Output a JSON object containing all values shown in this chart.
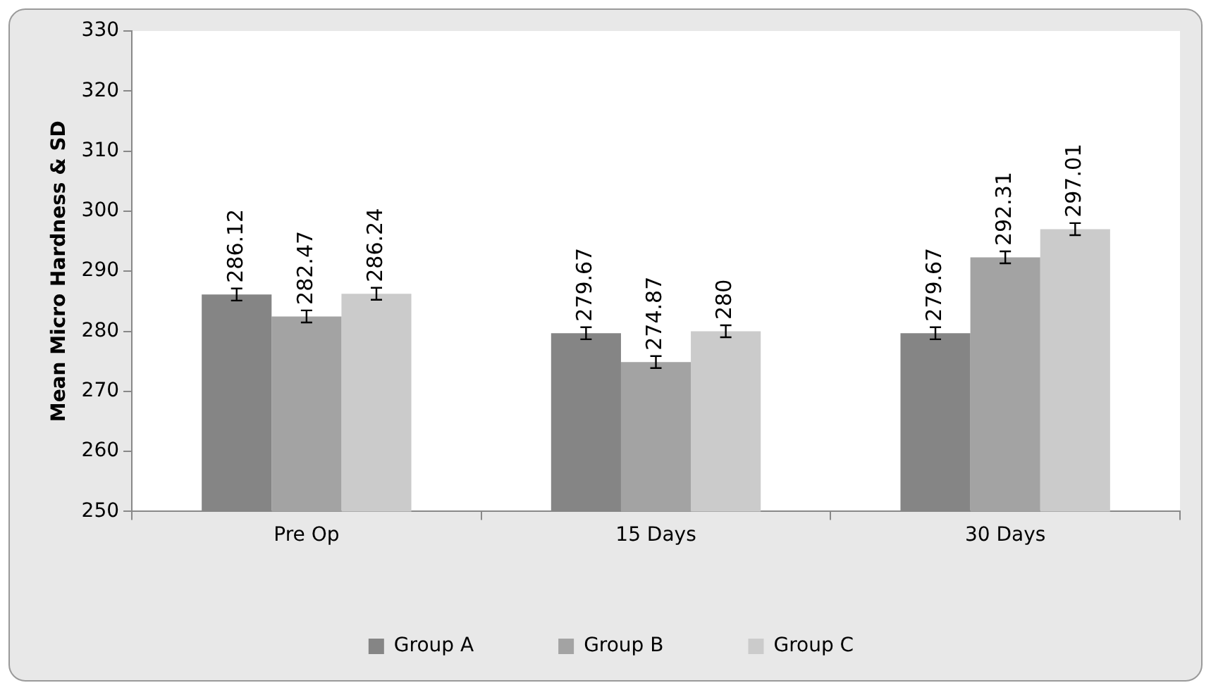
{
  "chart_data": {
    "type": "bar",
    "ylabel": "Mean Micro Hardness & SD",
    "categories": [
      "Pre Op",
      "15 Days",
      "30 Days"
    ],
    "series": [
      {
        "name": "Group A",
        "color": "#858585",
        "values": [
          286.12,
          279.67,
          279.67
        ],
        "errors": [
          1,
          1,
          1
        ]
      },
      {
        "name": "Group B",
        "color": "#a3a3a3",
        "values": [
          282.47,
          274.87,
          292.31
        ],
        "errors": [
          1,
          1,
          1
        ]
      },
      {
        "name": "Group C",
        "color": "#cbcbcb",
        "values": [
          286.24,
          280,
          297.01
        ],
        "errors": [
          1,
          1,
          1
        ]
      }
    ],
    "ylim": [
      250,
      330
    ],
    "yticks": [
      250,
      260,
      270,
      280,
      290,
      300,
      310,
      320,
      330
    ],
    "grid": false,
    "legend": "bottom",
    "data_labels": true
  }
}
